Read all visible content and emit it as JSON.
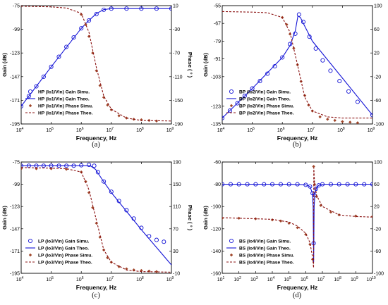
{
  "chart_data": [
    {
      "type": "line",
      "panel_label": "(a)",
      "xlabel": "Frequency, Hz",
      "ylabel_left": "Gain (dB)",
      "ylabel_right": "Phase ( ° )",
      "x_scale": "log",
      "xlim": [
        10000,
        1000000000
      ],
      "x_tick_exponents": [
        4,
        5,
        6,
        7,
        8,
        9
      ],
      "ylim_left": [
        -195,
        -75
      ],
      "y_ticks_left": [
        -75,
        -99,
        -123,
        -147,
        -171,
        -195
      ],
      "ylim_right": [
        -190,
        10
      ],
      "y_ticks_right": [
        10,
        -30,
        -70,
        -110,
        -150,
        -190
      ],
      "grid": false,
      "legend_position": "lower-left",
      "legend": [
        "HP (Io1/Vin) Gain Simu.",
        "HP (Io1/Vin) Gain Theo.",
        "HP (Io1/Vin) Phase Simu.",
        "HP (Io1/Vin) Phase Theo."
      ],
      "series": [
        {
          "name": "HP (Io1/Vin) Gain Simu.",
          "axis": "left",
          "style": "blue-circle",
          "x": [
            10000,
            18000,
            32000,
            56000,
            100000,
            180000,
            320000,
            560000,
            1000000,
            1800000,
            3200000,
            5600000,
            10000000,
            32000000,
            100000000,
            320000000,
            1000000000
          ],
          "y": [
            -177,
            -166.8,
            -156.8,
            -147.1,
            -137,
            -126.8,
            -116.8,
            -107.2,
            -98,
            -90,
            -83.6,
            -79.2,
            -78,
            -78,
            -78,
            -78,
            -78
          ]
        },
        {
          "name": "HP (Io1/Vin) Gain Theo.",
          "axis": "left",
          "style": "blue-solid",
          "x": [
            10000,
            100000,
            1000000,
            1800000,
            3200000,
            5600000,
            10000000,
            100000000,
            1000000000
          ],
          "y": [
            -177,
            -137,
            -98,
            -90,
            -83,
            -79,
            -78,
            -78,
            -78
          ]
        },
        {
          "name": "HP (Io1/Vin) Phase Simu.",
          "axis": "right",
          "style": "red-diamond",
          "x": [
            1000000,
            1400000,
            1800000,
            2400000,
            3200000,
            4200000,
            5600000,
            7500000,
            10000000,
            18000000,
            32000000,
            56000000,
            100000000,
            180000000,
            320000000
          ],
          "y": [
            -5,
            -22,
            -42,
            -70,
            -100,
            -125,
            -145,
            -158,
            -166,
            -176,
            -180,
            -182,
            -183,
            -184,
            -185
          ]
        },
        {
          "name": "HP (Io1/Vin) Phase Theo.",
          "axis": "right",
          "style": "red-dashed",
          "x": [
            10000,
            100000,
            320000,
            1000000,
            1800000,
            3200000,
            5600000,
            10000000,
            32000000,
            100000000,
            1000000000
          ],
          "y": [
            9,
            8,
            6,
            -3,
            -35,
            -95,
            -143,
            -165,
            -180,
            -184,
            -185
          ]
        }
      ]
    },
    {
      "type": "line",
      "panel_label": "(b)",
      "xlabel": "Frequency, Hz",
      "ylabel_left": "Gain (dB)",
      "ylabel_right": "Phase ( ° )",
      "x_scale": "log",
      "xlim": [
        10000,
        1000000000
      ],
      "x_tick_exponents": [
        4,
        5,
        6,
        7,
        8,
        9
      ],
      "ylim_left": [
        -135,
        -55
      ],
      "y_ticks_left": [
        -55,
        -67,
        -79,
        -91,
        -103,
        -123,
        -135
      ],
      "ylim_right": [
        -100,
        100
      ],
      "y_ticks_right": [
        100,
        60,
        20,
        -20,
        -60,
        -100
      ],
      "grid": false,
      "legend_position": "lower-left",
      "legend": [
        "BP (Io2/Vin) Gain Simu.",
        "BP (Io2/Vin) Gain Theo.",
        "BP (Io2/Vin) Phase Simu.",
        "BP (Io2/Vin) Phase Theo."
      ],
      "series": [
        {
          "name": "BP (Io2/Vin) Gain Simu.",
          "axis": "left",
          "style": "blue-circle",
          "x": [
            10000,
            18000,
            32000,
            56000,
            100000,
            180000,
            320000,
            560000,
            1000000,
            1800000,
            2700000,
            3600000,
            5000000,
            8000000,
            13000000,
            22000000,
            40000000,
            80000000,
            160000000,
            320000000,
            1000000000
          ],
          "y": [
            -131,
            -126,
            -121,
            -116,
            -111,
            -106,
            -101,
            -96,
            -90,
            -81,
            -74,
            -61,
            -66,
            -76,
            -84,
            -92,
            -99,
            -106,
            -113,
            -120,
            -129
          ]
        },
        {
          "name": "BP (Io2/Vin) Gain Theo.",
          "axis": "left",
          "style": "blue-solid",
          "x": [
            10000,
            100000,
            1000000,
            1800000,
            2700000,
            3300000,
            4000000,
            5000000,
            10000000,
            100000000,
            1000000000
          ],
          "y": [
            -131,
            -111,
            -90,
            -82,
            -72,
            -62,
            -63,
            -67,
            -79,
            -104,
            -129
          ]
        },
        {
          "name": "BP (Io2/Vin) Phase Simu.",
          "axis": "right",
          "style": "red-diamond",
          "x": [
            1000000,
            1400000,
            1800000,
            2400000,
            3200000,
            4200000,
            5600000,
            7500000,
            10000000,
            18000000,
            32000000,
            56000000,
            100000000,
            180000000,
            320000000
          ],
          "y": [
            80,
            68,
            52,
            28,
            0,
            -28,
            -52,
            -68,
            -78,
            -88,
            -92,
            -94,
            -96,
            -97,
            -98
          ]
        },
        {
          "name": "BP (Io2/Vin) Phase Theo.",
          "axis": "right",
          "style": "red-dashed",
          "x": [
            10000,
            100000,
            320000,
            1000000,
            1800000,
            3200000,
            5600000,
            10000000,
            32000000,
            100000000,
            1000000000
          ],
          "y": [
            90,
            89,
            88,
            80,
            55,
            0,
            -55,
            -78,
            -88,
            -90,
            -90
          ]
        }
      ]
    },
    {
      "type": "line",
      "panel_label": "(c)",
      "xlabel": "Frequency, Hz",
      "ylabel_left": "Gain (dB)",
      "ylabel_right": "Phase ( ° )",
      "x_scale": "log",
      "xlim": [
        10000,
        1000000000
      ],
      "x_tick_exponents": [
        4,
        5,
        6,
        7,
        8,
        9
      ],
      "ylim_left": [
        -195,
        -75
      ],
      "y_ticks_left": [
        -75,
        -99,
        -123,
        -147,
        -171,
        -195
      ],
      "ylim_right": [
        -10,
        190
      ],
      "y_ticks_right": [
        190,
        150,
        110,
        70,
        30,
        -10
      ],
      "grid": false,
      "legend_position": "lower-left",
      "legend": [
        "LP (Io3/Vin) Gain Simu.",
        "LP (Io3/Vin) Gain Theo.",
        "LP (Io3/Vin) Phase Simu.",
        "LP (Io3/Vin) Phase Theo."
      ],
      "series": [
        {
          "name": "LP (Io3/Vin) Gain Simu.",
          "axis": "left",
          "style": "blue-circle",
          "x": [
            10000,
            18000,
            32000,
            56000,
            100000,
            180000,
            320000,
            560000,
            1000000,
            1800000,
            2700000,
            3600000,
            5600000,
            10000000,
            18000000,
            32000000,
            56000000,
            100000000,
            180000000,
            320000000,
            560000000
          ],
          "y": [
            -79,
            -79,
            -79,
            -79,
            -79,
            -79,
            -79,
            -79,
            -78.5,
            -78,
            -79,
            -86,
            -96,
            -107,
            -117,
            -127,
            -136,
            -146,
            -155,
            -159,
            -161
          ]
        },
        {
          "name": "LP (Io3/Vin) Gain Theo.",
          "axis": "left",
          "style": "blue-solid",
          "x": [
            10000,
            100000,
            1000000,
            2000000,
            3000000,
            5000000,
            10000000,
            100000000,
            1000000000
          ],
          "y": [
            -79,
            -79,
            -79,
            -79,
            -83,
            -94,
            -108,
            -148,
            -186
          ]
        },
        {
          "name": "LP (Io3/Vin) Phase Simu.",
          "axis": "right",
          "style": "red-diamond",
          "x": [
            10000,
            32000,
            100000,
            320000,
            1000000,
            1400000,
            1800000,
            2400000,
            3200000,
            4200000,
            5600000,
            7500000,
            10000000,
            18000000,
            32000000,
            56000000,
            100000000,
            180000000,
            320000000
          ],
          "y": [
            178,
            178,
            178,
            177,
            172,
            155,
            135,
            108,
            80,
            55,
            32,
            18,
            10,
            2,
            -2,
            -4,
            -5,
            -6,
            -7
          ]
        },
        {
          "name": "LP (Io3/Vin) Phase Theo.",
          "axis": "right",
          "style": "red-dashed",
          "x": [
            10000,
            100000,
            320000,
            1000000,
            1800000,
            3200000,
            5600000,
            10000000,
            32000000,
            100000000,
            1000000000
          ],
          "y": [
            180,
            179,
            178,
            172,
            140,
            85,
            32,
            10,
            -4,
            -7,
            -8
          ]
        }
      ]
    },
    {
      "type": "line",
      "panel_label": "(d)",
      "xlabel": "Frequency, Hz",
      "ylabel_left": "Gain (dB)",
      "ylabel_right": "Phase ( ° )",
      "x_scale": "log",
      "xlim": [
        10,
        10000000000
      ],
      "x_tick_exponents": [
        1,
        2,
        3,
        4,
        5,
        6,
        7,
        8,
        9,
        10
      ],
      "ylim_left": [
        -160,
        -60
      ],
      "y_ticks_left": [
        -60,
        -80,
        -100,
        -120,
        -140,
        -160
      ],
      "ylim_right": [
        -100,
        100
      ],
      "y_ticks_right": [
        100,
        60,
        20,
        -20,
        -60,
        -100
      ],
      "grid": false,
      "legend_position": "lower-left",
      "legend": [
        "BS (Io4/Vin) Gain Simu.",
        "BS (Io4/Vin) Gain Theo.",
        "BS (Io4/Vin) Phase Simu.",
        "BS (Io4/Vin) Phase Theo."
      ],
      "series": [
        {
          "name": "BS (Io4/Vin) Gain Simu.",
          "axis": "left",
          "style": "blue-circle",
          "x": [
            10,
            32,
            100,
            320,
            1000,
            3200,
            10000,
            32000,
            100000,
            320000,
            1000000,
            1800000,
            2600000,
            3000000,
            3400000,
            4200000,
            6000000,
            10000000,
            32000000,
            100000000,
            320000000,
            1000000000,
            3200000000,
            10000000000
          ],
          "y": [
            -80,
            -80,
            -80,
            -80,
            -80,
            -80,
            -80,
            -80,
            -80,
            -80,
            -80.5,
            -82,
            -88,
            -133,
            -90,
            -84,
            -81,
            -80,
            -80,
            -80,
            -80,
            -80,
            -80,
            -80
          ]
        },
        {
          "name": "BS (Io4/Vin) Gain Theo.",
          "axis": "left",
          "style": "blue-solid",
          "x": [
            10,
            100000,
            1000000,
            1800000,
            2500000,
            2800000,
            3000000,
            3200000,
            3600000,
            4500000,
            6000000,
            10000000,
            10000000000
          ],
          "y": [
            -80,
            -80,
            -80.5,
            -82,
            -88,
            -100,
            -150,
            -100,
            -88,
            -83,
            -81,
            -80,
            -80
          ]
        },
        {
          "name": "BS (Io4/Vin) Phase Simu.",
          "axis": "right",
          "style": "red-diamond",
          "x": [
            10,
            100,
            1000,
            10000,
            32000,
            100000,
            320000,
            1000000,
            1800000,
            2600000,
            3000000,
            3400000,
            4500000,
            8000000,
            32000000,
            100000000,
            1000000000,
            10000000000
          ],
          "y": [
            -1,
            -1,
            -2,
            -4,
            -6,
            -10,
            -18,
            -30,
            -48,
            -75,
            92,
            60,
            38,
            22,
            10,
            5,
            3,
            2
          ]
        },
        {
          "name": "BS (Io4/Vin) Phase Theo.",
          "axis": "right",
          "style": "red-dashed",
          "x": [
            10,
            100,
            1000,
            10000,
            100000,
            320000,
            1000000,
            1800000,
            2600000,
            2950000,
            3050000,
            3400000,
            4500000,
            10000000,
            100000000,
            1000000000,
            10000000000
          ],
          "y": [
            0,
            -1,
            -2,
            -3,
            -8,
            -15,
            -28,
            -45,
            -72,
            -90,
            90,
            62,
            40,
            20,
            5,
            2,
            1
          ]
        }
      ]
    }
  ],
  "colors": {
    "gain": "#1515d6",
    "phase_marker": "#a0462a",
    "phase_line": "#8a1010",
    "axis": "#000000"
  }
}
